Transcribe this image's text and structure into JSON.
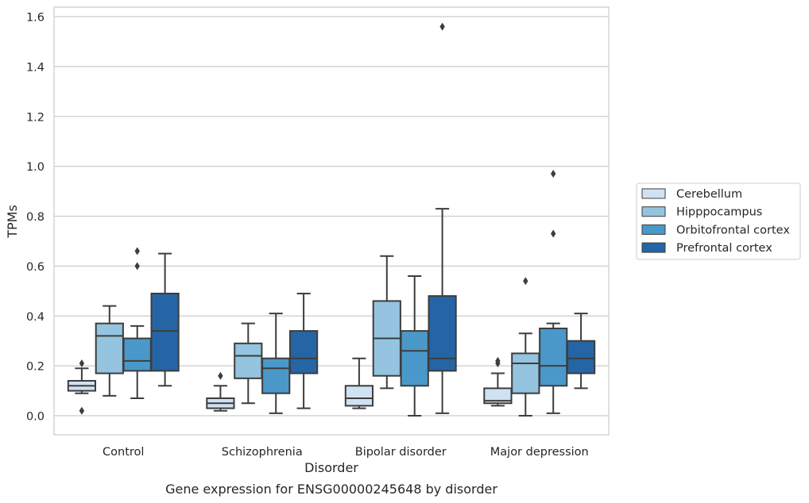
{
  "chart_data": {
    "type": "box",
    "caption": "Gene expression for ENSG00000245648 by disorder",
    "xlabel": "Disorder",
    "ylabel": "TPMs",
    "ylim": [
      -0.075,
      1.64
    ],
    "yticks": [
      0.0,
      0.2,
      0.4,
      0.6,
      0.8,
      1.0,
      1.2,
      1.4,
      1.6
    ],
    "ytick_labels": [
      "0.0",
      "0.2",
      "0.4",
      "0.6",
      "0.8",
      "1.0",
      "1.2",
      "1.4",
      "1.6"
    ],
    "grid": true,
    "legend_position": "outside-right",
    "categories": [
      "Control",
      "Schizophrenia",
      "Bipolar disorder",
      "Major depression"
    ],
    "series": [
      {
        "name": "Cerebellum",
        "color": "#d0e1f2",
        "boxes": [
          {
            "whisker_low": 0.09,
            "q1": 0.1,
            "median": 0.12,
            "q3": 0.14,
            "whisker_high": 0.19,
            "outliers": [
              0.21,
              0.02
            ]
          },
          {
            "whisker_low": 0.02,
            "q1": 0.03,
            "median": 0.05,
            "q3": 0.07,
            "whisker_high": 0.12,
            "outliers": [
              0.16
            ]
          },
          {
            "whisker_low": 0.03,
            "q1": 0.04,
            "median": 0.07,
            "q3": 0.12,
            "whisker_high": 0.23,
            "outliers": []
          },
          {
            "whisker_low": 0.04,
            "q1": 0.05,
            "median": 0.06,
            "q3": 0.11,
            "whisker_high": 0.17,
            "outliers": [
              0.21,
              0.22
            ]
          }
        ]
      },
      {
        "name": "Hipppocampus",
        "color": "#94c4df",
        "boxes": [
          {
            "whisker_low": 0.08,
            "q1": 0.17,
            "median": 0.32,
            "q3": 0.37,
            "whisker_high": 0.44,
            "outliers": []
          },
          {
            "whisker_low": 0.05,
            "q1": 0.15,
            "median": 0.24,
            "q3": 0.29,
            "whisker_high": 0.37,
            "outliers": []
          },
          {
            "whisker_low": 0.11,
            "q1": 0.16,
            "median": 0.31,
            "q3": 0.46,
            "whisker_high": 0.64,
            "outliers": []
          },
          {
            "whisker_low": 0.0,
            "q1": 0.09,
            "median": 0.21,
            "q3": 0.25,
            "whisker_high": 0.33,
            "outliers": [
              0.54
            ]
          }
        ]
      },
      {
        "name": "Orbitofrontal cortex",
        "color": "#4a98c9",
        "boxes": [
          {
            "whisker_low": 0.07,
            "q1": 0.18,
            "median": 0.22,
            "q3": 0.31,
            "whisker_high": 0.36,
            "outliers": [
              0.6,
              0.66
            ]
          },
          {
            "whisker_low": 0.01,
            "q1": 0.09,
            "median": 0.19,
            "q3": 0.23,
            "whisker_high": 0.41,
            "outliers": []
          },
          {
            "whisker_low": 0.0,
            "q1": 0.12,
            "median": 0.26,
            "q3": 0.34,
            "whisker_high": 0.56,
            "outliers": []
          },
          {
            "whisker_low": 0.01,
            "q1": 0.12,
            "median": 0.2,
            "q3": 0.35,
            "whisker_high": 0.37,
            "outliers": [
              0.73,
              0.97
            ]
          }
        ]
      },
      {
        "name": "Prefrontal cortex",
        "color": "#2565a6",
        "boxes": [
          {
            "whisker_low": 0.12,
            "q1": 0.18,
            "median": 0.34,
            "q3": 0.49,
            "whisker_high": 0.65,
            "outliers": []
          },
          {
            "whisker_low": 0.03,
            "q1": 0.17,
            "median": 0.23,
            "q3": 0.34,
            "whisker_high": 0.49,
            "outliers": []
          },
          {
            "whisker_low": 0.01,
            "q1": 0.18,
            "median": 0.23,
            "q3": 0.48,
            "whisker_high": 0.83,
            "outliers": [
              1.56
            ]
          },
          {
            "whisker_low": 0.11,
            "q1": 0.17,
            "median": 0.23,
            "q3": 0.3,
            "whisker_high": 0.41,
            "outliers": []
          }
        ]
      }
    ]
  }
}
